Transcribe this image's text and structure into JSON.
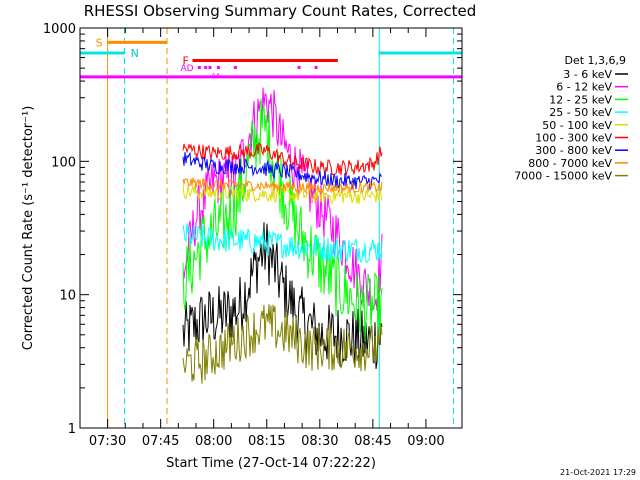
{
  "chart_data": {
    "type": "line",
    "title": "RHESSI Observing Summary Count Rates, Corrected",
    "xlabel": "Start Time (27-Oct-14 07:22:22)",
    "ylabel": "Corrected Count Rate (s⁻¹ detector⁻¹)",
    "yscale": "log",
    "ylim": [
      1,
      1000
    ],
    "xlim_min": [
      7.37,
      9.17
    ],
    "x_ticks": [
      {
        "label": "07:30",
        "t": 7.5
      },
      {
        "label": "07:45",
        "t": 7.75
      },
      {
        "label": "08:00",
        "t": 8.0
      },
      {
        "label": "08:15",
        "t": 8.25
      },
      {
        "label": "08:30",
        "t": 8.5
      },
      {
        "label": "08:45",
        "t": 8.75
      },
      {
        "label": "09:00",
        "t": 9.0
      }
    ],
    "y_ticks": [
      {
        "label": "1",
        "v": 1
      },
      {
        "label": "10",
        "v": 10
      },
      {
        "label": "100",
        "v": 100
      },
      {
        "label": "1000",
        "v": 1000
      }
    ],
    "legend_title": "Det 1,3,6,9",
    "series": [
      {
        "name": "3 - 6 keV",
        "color": "#000000",
        "start": 7.855,
        "end": 8.795,
        "keys": [
          [
            7.855,
            5
          ],
          [
            7.95,
            6.5
          ],
          [
            8.05,
            7
          ],
          [
            8.12,
            8
          ],
          [
            8.18,
            14
          ],
          [
            8.22,
            20
          ],
          [
            8.25,
            22
          ],
          [
            8.28,
            17
          ],
          [
            8.33,
            11
          ],
          [
            8.4,
            7
          ],
          [
            8.5,
            5
          ],
          [
            8.6,
            5
          ],
          [
            8.7,
            4.5
          ],
          [
            8.75,
            4.5
          ],
          [
            8.795,
            5
          ]
        ]
      },
      {
        "name": "6 - 12 keV",
        "color": "#ff00ff",
        "start": 7.855,
        "end": 8.795,
        "keys": [
          [
            7.855,
            14
          ],
          [
            7.92,
            40
          ],
          [
            8.0,
            70
          ],
          [
            8.1,
            75
          ],
          [
            8.18,
            180
          ],
          [
            8.225,
            260
          ],
          [
            8.25,
            290
          ],
          [
            8.28,
            230
          ],
          [
            8.32,
            140
          ],
          [
            8.38,
            95
          ],
          [
            8.45,
            60
          ],
          [
            8.52,
            40
          ],
          [
            8.6,
            25
          ],
          [
            8.68,
            14
          ],
          [
            8.76,
            9
          ],
          [
            8.795,
            20
          ]
        ]
      },
      {
        "name": "12 - 25 keV",
        "color": "#00ff00",
        "start": 7.855,
        "end": 8.795,
        "keys": [
          [
            7.855,
            12
          ],
          [
            7.95,
            25
          ],
          [
            8.05,
            35
          ],
          [
            8.12,
            55
          ],
          [
            8.18,
            120
          ],
          [
            8.22,
            170
          ],
          [
            8.24,
            180
          ],
          [
            8.28,
            110
          ],
          [
            8.33,
            60
          ],
          [
            8.4,
            30
          ],
          [
            8.5,
            17
          ],
          [
            8.6,
            11
          ],
          [
            8.7,
            8
          ],
          [
            8.795,
            8
          ]
        ]
      },
      {
        "name": "25 - 50 keV",
        "color": "#00ffff",
        "start": 7.855,
        "end": 8.795,
        "keys": [
          [
            7.855,
            28
          ],
          [
            8.0,
            26
          ],
          [
            8.2,
            25
          ],
          [
            8.4,
            23
          ],
          [
            8.6,
            22
          ],
          [
            8.795,
            22
          ]
        ]
      },
      {
        "name": "50 - 100 keV",
        "color": "#dddd00",
        "start": 7.855,
        "end": 8.795,
        "keys": [
          [
            7.855,
            60
          ],
          [
            8.0,
            58
          ],
          [
            8.2,
            57
          ],
          [
            8.4,
            56
          ],
          [
            8.6,
            55
          ],
          [
            8.795,
            55
          ]
        ]
      },
      {
        "name": "100 - 300 keV",
        "color": "#ff0000",
        "start": 7.855,
        "end": 8.795,
        "keys": [
          [
            7.855,
            125
          ],
          [
            8.0,
            115
          ],
          [
            8.15,
            118
          ],
          [
            8.25,
            120
          ],
          [
            8.35,
            100
          ],
          [
            8.5,
            90
          ],
          [
            8.65,
            90
          ],
          [
            8.75,
            95
          ],
          [
            8.795,
            120
          ]
        ]
      },
      {
        "name": "300 - 800 keV",
        "color": "#0000ff",
        "start": 7.855,
        "end": 8.795,
        "keys": [
          [
            7.855,
            105
          ],
          [
            8.0,
            92
          ],
          [
            8.15,
            92
          ],
          [
            8.25,
            88
          ],
          [
            8.4,
            80
          ],
          [
            8.55,
            72
          ],
          [
            8.7,
            70
          ],
          [
            8.795,
            72
          ]
        ]
      },
      {
        "name": "800 - 7000 keV",
        "color": "#ff8c00",
        "start": 7.855,
        "end": 8.795,
        "keys": [
          [
            7.855,
            70
          ],
          [
            8.0,
            67
          ],
          [
            8.2,
            66
          ],
          [
            8.4,
            64
          ],
          [
            8.6,
            63
          ],
          [
            8.795,
            64
          ]
        ]
      },
      {
        "name": "7000 - 15000 keV",
        "color": "#808000",
        "start": 7.855,
        "end": 8.795,
        "keys": [
          [
            7.855,
            3
          ],
          [
            7.95,
            3.2
          ],
          [
            8.05,
            4
          ],
          [
            8.15,
            5
          ],
          [
            8.25,
            6
          ],
          [
            8.35,
            5
          ],
          [
            8.45,
            4
          ],
          [
            8.55,
            4
          ],
          [
            8.65,
            4
          ],
          [
            8.75,
            4
          ],
          [
            8.795,
            4
          ]
        ]
      }
    ],
    "flags": {
      "S_label": "S",
      "N_label": "N",
      "F_label": "F",
      "AD_label": "AD",
      "S_bar": [
        7.5,
        7.78
      ],
      "F_bar": [
        7.9,
        8.585
      ],
      "S_vlines": [
        7.5,
        7.78
      ],
      "N_vlines": [
        7.58,
        9.13
      ],
      "cyan_vlines": [
        7.37,
        8.78
      ],
      "cyan_level": 650,
      "cyan_segments": [
        [
          7.37,
          7.58
        ],
        [
          8.78,
          9.17
        ]
      ],
      "magenta_level": 430,
      "F_level": 570,
      "AD_level": 510,
      "AD_dots": [
        7.93,
        7.96,
        7.98,
        8.02,
        8.1,
        8.4,
        8.48
      ],
      "A_marks": [
        8.0,
        8.02
      ]
    }
  },
  "footer_date": "21-Oct-2021 17:29"
}
